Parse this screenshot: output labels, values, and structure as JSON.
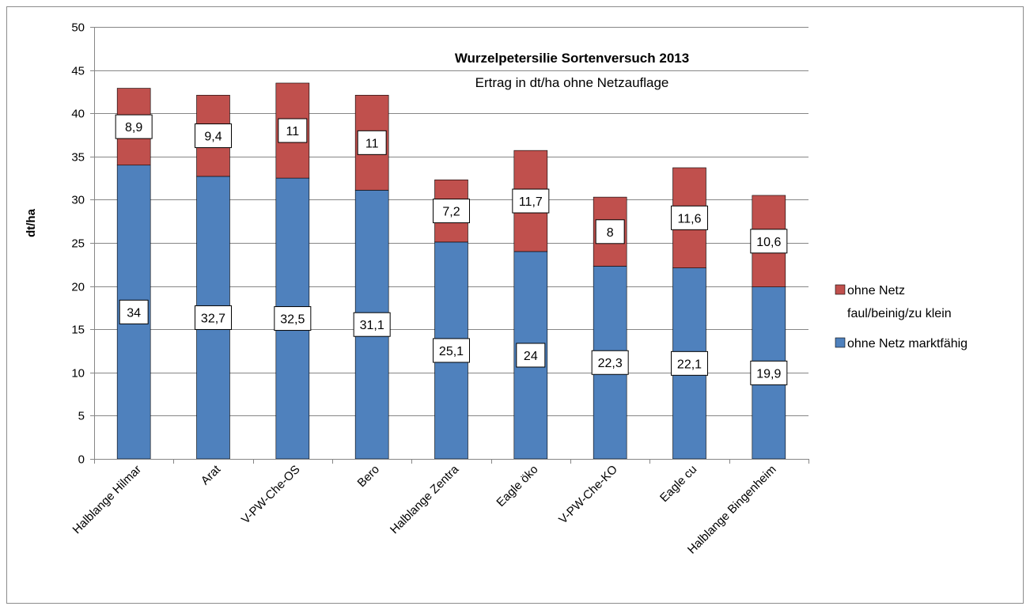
{
  "chart_data": {
    "type": "bar",
    "stacked": true,
    "title": "Wurzelpetersilie  Sortenversuch 2013",
    "subtitle": "Ertrag in dt/ha ohne Netzauflage",
    "xlabel": "",
    "ylabel": "dt/ha",
    "ylim": [
      0,
      50
    ],
    "yticks": [
      0,
      5,
      10,
      15,
      20,
      25,
      30,
      35,
      40,
      45,
      50
    ],
    "grid": true,
    "legend_position": "right",
    "categories": [
      "Halblange Hilmar",
      "Arat",
      "V-PW-Che-OS",
      "Bero",
      "Halblange Zentra",
      "Eagle öko",
      "V-PW-Che-KO",
      "Eagle cu",
      "Halblange Bingenheim"
    ],
    "series": [
      {
        "name": "ohne Netz marktfähig",
        "color": "#4f81bd",
        "values": [
          34,
          32.7,
          32.5,
          31.1,
          25.1,
          24,
          22.3,
          22.1,
          19.9
        ],
        "labels": [
          "34",
          "32,7",
          "32,5",
          "31,1",
          "25,1",
          "24",
          "22,3",
          "22,1",
          "19,9"
        ]
      },
      {
        "name": "ohne Netz faul/beinig/zu klein",
        "color": "#c0504d",
        "values": [
          8.9,
          9.4,
          11,
          11,
          7.2,
          11.7,
          8,
          11.6,
          10.6
        ],
        "labels": [
          "8,9",
          "9,4",
          "11",
          "11",
          "7,2",
          "11,7",
          "8",
          "11,6",
          "10,6"
        ]
      }
    ],
    "legend": [
      {
        "lines": [
          "ohne Netz",
          "faul/beinig/zu klein"
        ],
        "color": "#c0504d"
      },
      {
        "lines": [
          "ohne Netz marktfähig"
        ],
        "color": "#4f81bd"
      }
    ]
  }
}
